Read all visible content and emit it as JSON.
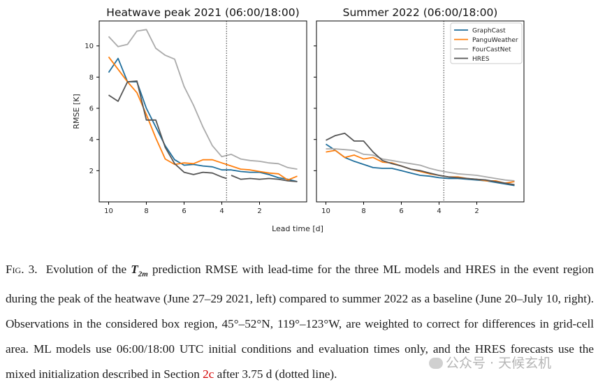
{
  "chart_data": {
    "type": "line",
    "ylabel": "RMSE [K]",
    "xlabel": "Lead time [d]",
    "x_ticks": [
      10,
      8,
      6,
      4,
      2
    ],
    "y_ticks": [
      2,
      4,
      6,
      8,
      10
    ],
    "xlim": [
      10.5,
      -0.5
    ],
    "ylim": [
      0,
      11.6
    ],
    "vline_x": 3.75,
    "legend": [
      "GraphCast",
      "PanguWeather",
      "FourCastNet",
      "HRES"
    ],
    "colors": {
      "GraphCast": "#1f6e9c",
      "PanguWeather": "#ff7f0e",
      "FourCastNet": "#aaaaaa",
      "HRES": "#555555"
    },
    "panels": [
      {
        "title": "Heatwave peak 2021 (06:00/18:00)",
        "series": [
          {
            "name": "GraphCast",
            "x": [
              10,
              9.5,
              9,
              8.5,
              8,
              7.5,
              7,
              6.5,
              6,
              5.5,
              5,
              4.5,
              4,
              3.5,
              3,
              2.5,
              2,
              1.5,
              1,
              0.5,
              0
            ],
            "y": [
              8.3,
              9.2,
              7.7,
              7.7,
              6.0,
              4.8,
              3.6,
              2.7,
              2.35,
              2.4,
              2.3,
              2.25,
              2.05,
              2.05,
              1.95,
              1.9,
              1.9,
              1.75,
              1.55,
              1.45,
              1.3
            ]
          },
          {
            "name": "PanguWeather",
            "x": [
              10,
              9.5,
              9,
              8.5,
              8,
              7.5,
              7,
              6.5,
              6,
              5.5,
              5,
              4.5,
              4,
              3.5,
              3,
              2.5,
              2,
              1.5,
              1,
              0.5,
              0
            ],
            "y": [
              9.3,
              8.5,
              7.7,
              7.0,
              5.6,
              4.1,
              2.75,
              2.4,
              2.5,
              2.45,
              2.7,
              2.7,
              2.5,
              2.3,
              2.1,
              2.05,
              1.95,
              1.85,
              1.8,
              1.4,
              1.65
            ]
          },
          {
            "name": "FourCastNet",
            "x": [
              10,
              9.5,
              9,
              8.5,
              8,
              7.5,
              7,
              6.5,
              6,
              5.5,
              5,
              4.5,
              4,
              3.5,
              3,
              2.5,
              2,
              1.5,
              1,
              0.5,
              0
            ],
            "y": [
              10.6,
              9.95,
              10.1,
              10.95,
              11.05,
              9.85,
              9.4,
              9.15,
              7.4,
              6.2,
              4.8,
              3.6,
              2.9,
              3.05,
              2.75,
              2.65,
              2.6,
              2.5,
              2.45,
              2.2,
              2.1
            ]
          },
          {
            "name": "HRES",
            "x": [
              10,
              9.5,
              9,
              8.5,
              8,
              7.5,
              7,
              6.5,
              6,
              5.5,
              5,
              4.5,
              4,
              3.75,
              3.75,
              3.5,
              3,
              2.5,
              2,
              1.5,
              1,
              0.5,
              0
            ],
            "y": [
              6.85,
              6.45,
              7.7,
              7.75,
              5.25,
              5.25,
              3.5,
              2.45,
              1.9,
              1.75,
              1.9,
              1.85,
              1.6,
              1.5,
              null,
              1.7,
              1.45,
              1.5,
              1.45,
              1.5,
              1.45,
              1.35,
              1.3
            ]
          }
        ]
      },
      {
        "title": "Summer 2022 (06:00/18:00)",
        "series": [
          {
            "name": "GraphCast",
            "x": [
              10,
              9.5,
              9,
              8.5,
              8,
              7.5,
              7,
              6.5,
              6,
              5.5,
              5,
              4.5,
              4,
              3.5,
              3,
              2.5,
              2,
              1.5,
              1,
              0.5,
              0
            ],
            "y": [
              3.7,
              3.3,
              2.85,
              2.6,
              2.4,
              2.2,
              2.15,
              2.15,
              2.0,
              1.85,
              1.7,
              1.65,
              1.55,
              1.5,
              1.5,
              1.45,
              1.4,
              1.35,
              1.25,
              1.15,
              1.05
            ]
          },
          {
            "name": "PanguWeather",
            "x": [
              10,
              9.5,
              9,
              8.5,
              8,
              7.5,
              7,
              6.5,
              6,
              5.5,
              5,
              4.5,
              4,
              3.5,
              3,
              2.5,
              2,
              1.5,
              1,
              0.5,
              0
            ],
            "y": [
              3.2,
              3.3,
              2.85,
              3.0,
              2.75,
              2.85,
              2.55,
              2.5,
              2.3,
              2.1,
              1.95,
              1.8,
              1.7,
              1.6,
              1.6,
              1.5,
              1.45,
              1.35,
              1.35,
              1.2,
              1.3
            ]
          },
          {
            "name": "FourCastNet",
            "x": [
              10,
              9.5,
              9,
              8.5,
              8,
              7.5,
              7,
              6.5,
              6,
              5.5,
              5,
              4.5,
              4,
              3.5,
              3,
              2.5,
              2,
              1.5,
              1,
              0.5,
              0
            ],
            "y": [
              3.4,
              3.4,
              3.35,
              3.3,
              3.05,
              3.0,
              2.75,
              2.65,
              2.55,
              2.45,
              2.35,
              2.15,
              2.0,
              1.9,
              1.8,
              1.75,
              1.7,
              1.6,
              1.5,
              1.4,
              1.35
            ]
          },
          {
            "name": "HRES",
            "x": [
              10,
              9.5,
              9,
              8.5,
              8,
              7.5,
              7,
              6.5,
              6,
              5.5,
              5,
              4.5,
              4,
              3.5,
              3,
              2.5,
              2,
              1.5,
              1,
              0.5,
              0
            ],
            "y": [
              3.95,
              4.25,
              4.4,
              3.9,
              3.9,
              3.2,
              2.65,
              2.45,
              2.3,
              2.1,
              2.0,
              1.85,
              1.7,
              1.6,
              1.55,
              1.5,
              1.45,
              1.4,
              1.3,
              1.2,
              1.1
            ]
          }
        ]
      }
    ]
  },
  "caption": {
    "fig_label": "Fig. 3.",
    "text_1": "Evolution of the",
    "variable": "T",
    "variable_sub": "2m",
    "text_2": "prediction RMSE with lead-time for the three ML models and HRES in the event region during the peak of the heatwave (June 27–29 2021, left) compared to summer 2022 as a baseline (June 20–July 10, right). Observations in the considered box region, 45°–52°N, 119°–123°W, are weighted to correct for differences in grid-cell area. ML models use 06:00/18:00 UTC initial conditions and evaluation times only, and the HRES forecasts use the mixed initialization described in Section",
    "section_ref": "2c",
    "text_3": "after 3.75 d (dotted line)."
  },
  "watermark": {
    "text": "公众号 · 天候玄机"
  }
}
